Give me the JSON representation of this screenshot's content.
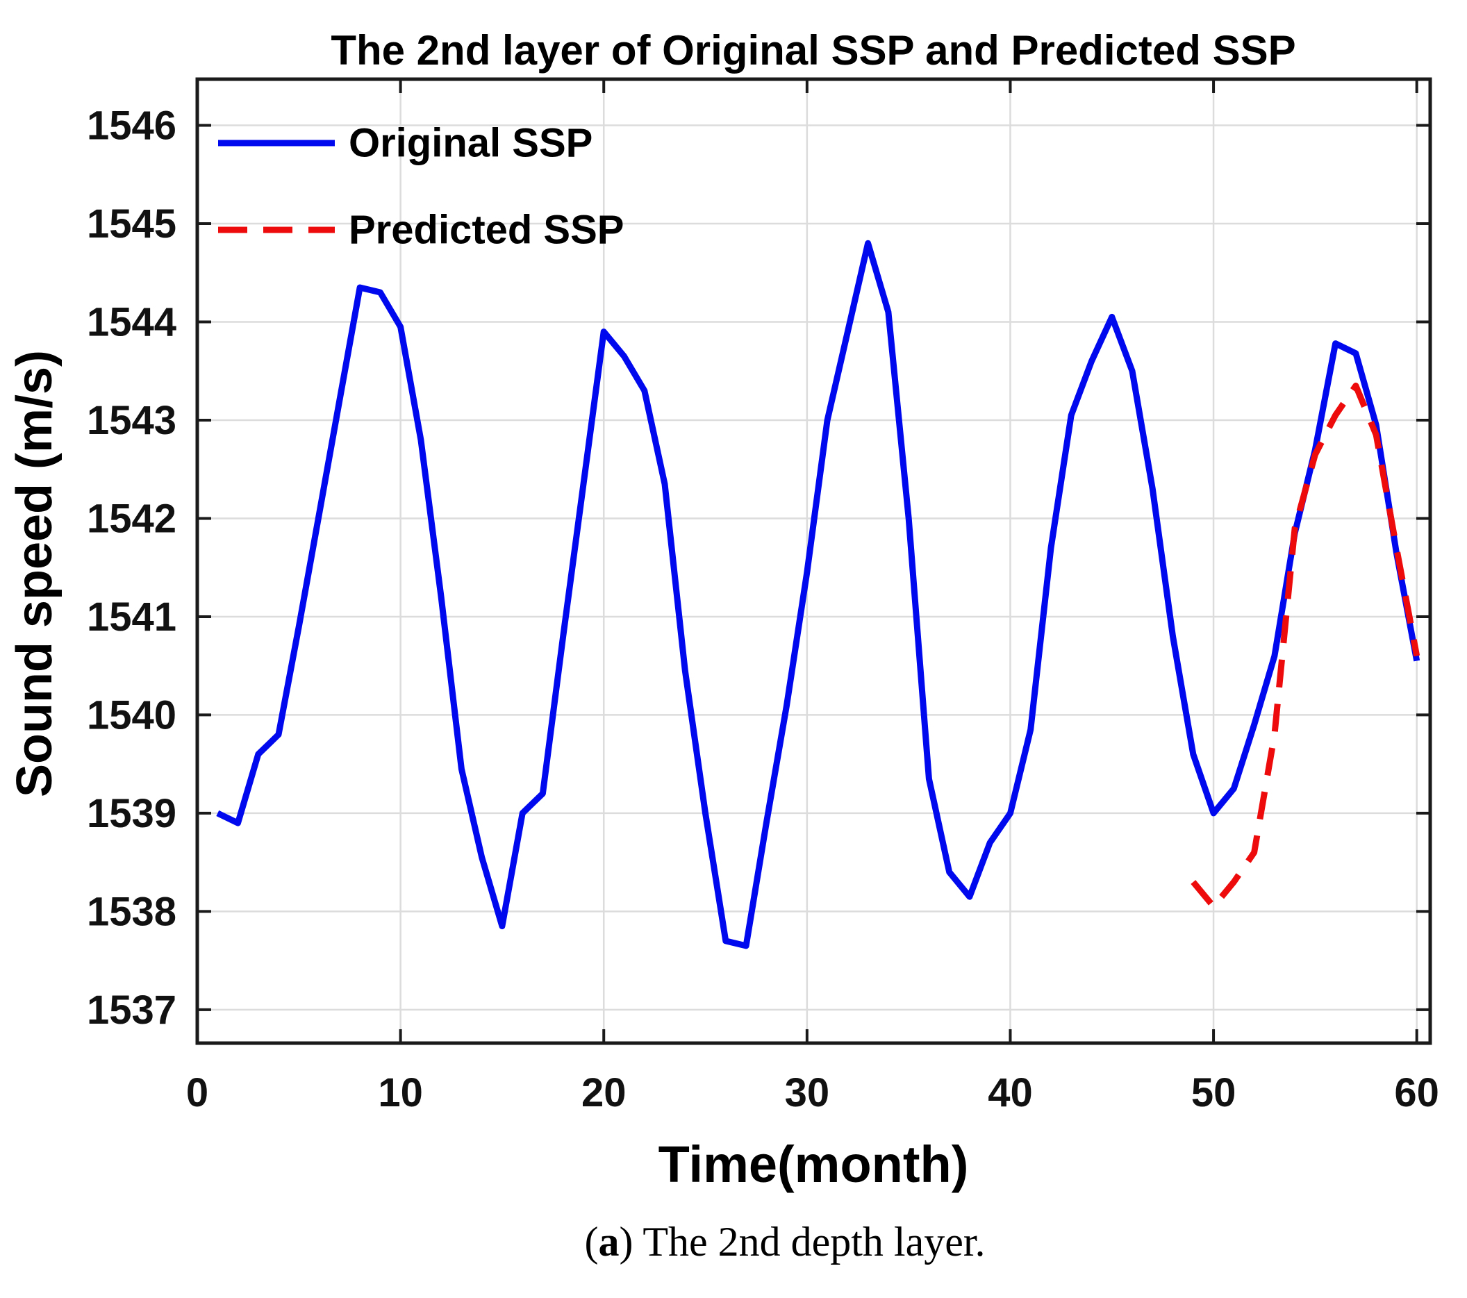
{
  "figure": {
    "caption": {
      "open": "(",
      "label": "a",
      "close": ") ",
      "text": "The 2nd depth layer."
    }
  },
  "chart_data": {
    "type": "line",
    "title": "The 2nd layer of Original SSP and Predicted SSP",
    "xlabel": "Time(month)",
    "ylabel": "Sound speed (m/s)",
    "xlim": [
      0,
      60.66
    ],
    "ylim": [
      1536.66,
      1546.47
    ],
    "x_ticks": [
      0,
      10,
      20,
      30,
      40,
      50,
      60
    ],
    "y_ticks": [
      1537,
      1538,
      1539,
      1540,
      1541,
      1542,
      1543,
      1544,
      1545,
      1546
    ],
    "grid": true,
    "legend_position": "inside-top-left",
    "colors": {
      "original": "#0009ee",
      "predicted": "#ee0b0b",
      "grid": "#dcdcdc",
      "axis": "#1a1a1a",
      "text": "#111111"
    },
    "series": [
      {
        "name": "Original SSP",
        "style": "solid",
        "color_key": "original",
        "x": [
          1,
          2,
          3,
          4,
          5,
          6,
          7,
          8,
          9,
          10,
          11,
          12,
          13,
          14,
          15,
          16,
          17,
          18,
          19,
          20,
          21,
          22,
          23,
          24,
          25,
          26,
          27,
          28,
          29,
          30,
          31,
          32,
          33,
          34,
          35,
          36,
          37,
          38,
          39,
          40,
          41,
          42,
          43,
          44,
          45,
          46,
          47,
          48,
          49,
          50,
          51,
          52,
          53,
          54,
          55,
          56,
          57,
          58,
          59,
          60
        ],
        "values": [
          1539.0,
          1538.9,
          1539.6,
          1539.8,
          1540.9,
          1542.05,
          1543.2,
          1544.35,
          1544.3,
          1543.95,
          1542.8,
          1541.2,
          1539.45,
          1538.55,
          1537.85,
          1539.0,
          1539.2,
          1540.8,
          1542.35,
          1543.9,
          1543.65,
          1543.3,
          1542.35,
          1540.45,
          1539.0,
          1537.7,
          1537.65,
          1538.9,
          1540.1,
          1541.45,
          1543.0,
          1543.9,
          1544.8,
          1544.1,
          1542.0,
          1539.35,
          1538.4,
          1538.15,
          1538.7,
          1539.0,
          1539.85,
          1541.7,
          1543.05,
          1543.6,
          1544.05,
          1543.5,
          1542.3,
          1540.8,
          1539.6,
          1539.0,
          1539.25,
          1539.9,
          1540.6,
          1541.85,
          1542.7,
          1543.78,
          1543.68,
          1542.95,
          1541.65,
          1540.55
        ]
      },
      {
        "name": "Predicted SSP",
        "style": "dashed",
        "color_key": "predicted",
        "x": [
          49,
          50,
          51,
          52,
          53,
          54,
          55,
          56,
          57,
          58,
          59,
          60
        ],
        "values": [
          1538.3,
          1538.05,
          1538.3,
          1538.6,
          1539.8,
          1541.9,
          1542.65,
          1543.05,
          1543.35,
          1542.85,
          1541.7,
          1540.6
        ]
      }
    ]
  }
}
